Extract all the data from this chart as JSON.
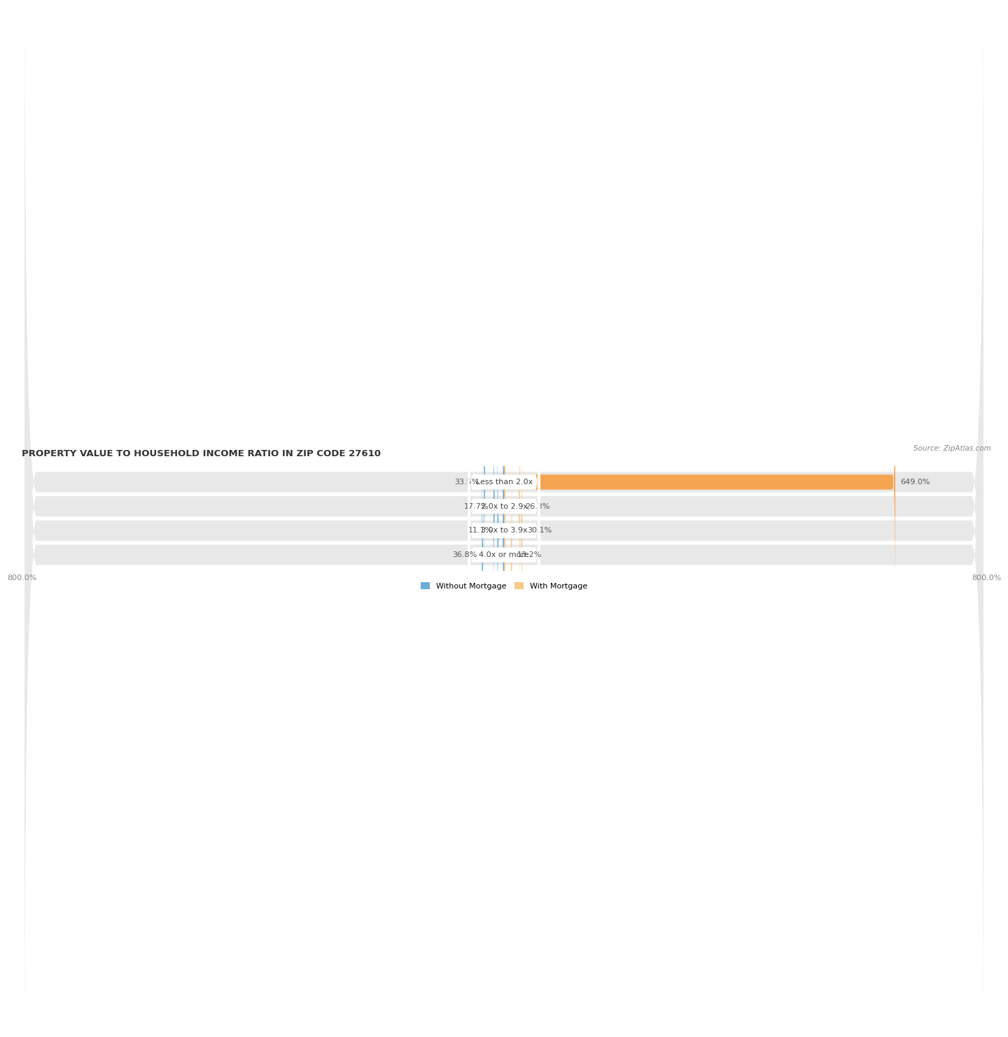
{
  "title": "PROPERTY VALUE TO HOUSEHOLD INCOME RATIO IN ZIP CODE 27610",
  "source": "Source: ZipAtlas.com",
  "categories": [
    "Less than 2.0x",
    "2.0x to 2.9x",
    "3.0x to 3.9x",
    "4.0x or more"
  ],
  "without_mortgage": [
    33.5,
    17.7,
    11.1,
    36.8
  ],
  "with_mortgage": [
    649.0,
    26.3,
    30.1,
    13.2
  ],
  "xlim": [
    -800,
    800
  ],
  "xticklabels_left": "800.0%",
  "xticklabels_right": "800.0%",
  "bar_height": 0.62,
  "without_mortgage_color": "#6aaed6",
  "with_mortgage_color": "#f5a552",
  "with_mortgage_color_light": "#f5c98a",
  "background_row_color": "#e8e8e8",
  "label_badge_color": "#ffffff",
  "title_fontsize": 9.5,
  "source_fontsize": 7.5,
  "label_fontsize": 8,
  "tick_fontsize": 8,
  "legend_fontsize": 8,
  "value_label_color": "#555555",
  "category_label_color": "#444444"
}
